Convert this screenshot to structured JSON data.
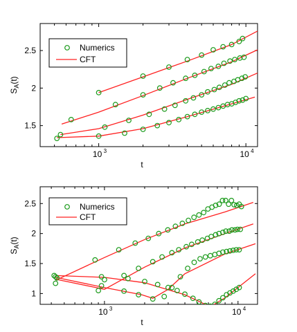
{
  "colors": {
    "numerics": "#1a9a1a",
    "cft": "#ff2020"
  },
  "chart_data": [
    {
      "type": "line",
      "xscale": "log",
      "xlim": [
        400,
        12000
      ],
      "ylim": [
        1.22,
        2.86
      ],
      "xticks": [
        {
          "value": 1000,
          "base": "10",
          "exp": "3"
        },
        {
          "value": 10000,
          "base": "10",
          "exp": "4"
        }
      ],
      "yticks": [
        {
          "value": 1.5,
          "label": "1.5"
        },
        {
          "value": 2,
          "label": "2"
        },
        {
          "value": 2.5,
          "label": "2.5"
        }
      ],
      "xlabel": "t",
      "ylabel": "S",
      "ylabel_sub": "A",
      "ylabel_suffix": "(t)",
      "legend": {
        "position": "top-left",
        "entries": [
          "Numerics",
          "CFT"
        ]
      },
      "series": [
        {
          "numerics": [
            [
              1000,
              1.94
            ],
            [
              2000,
              2.16
            ],
            [
              3000,
              2.28
            ],
            [
              4000,
              2.38
            ],
            [
              5000,
              2.44
            ],
            [
              6000,
              2.51
            ],
            [
              7000,
              2.55
            ],
            [
              8000,
              2.58
            ],
            [
              9000,
              2.62
            ],
            [
              9500,
              2.66
            ]
          ],
          "cft": [
            [
              1000,
              1.94
            ],
            [
              2000,
              2.15
            ],
            [
              4000,
              2.36
            ],
            [
              8000,
              2.58
            ],
            [
              12000,
              2.76
            ]
          ]
        },
        {
          "numerics": [
            [
              650,
              1.58
            ],
            [
              1300,
              1.78
            ],
            [
              2000,
              1.91
            ],
            [
              2600,
              2.0
            ],
            [
              3200,
              2.07
            ],
            [
              3900,
              2.13
            ],
            [
              4500,
              2.17
            ],
            [
              5200,
              2.22
            ],
            [
              5800,
              2.26
            ],
            [
              6500,
              2.29
            ],
            [
              7100,
              2.33
            ],
            [
              7800,
              2.36
            ],
            [
              8400,
              2.38
            ],
            [
              9100,
              2.4
            ],
            [
              9700,
              2.41
            ]
          ],
          "cft": [
            [
              560,
              1.52
            ],
            [
              1000,
              1.68
            ],
            [
              2000,
              1.9
            ],
            [
              4000,
              2.13
            ],
            [
              8000,
              2.35
            ],
            [
              12000,
              2.51
            ]
          ]
        },
        {
          "numerics": [
            [
              550,
              1.38
            ],
            [
              1100,
              1.48
            ],
            [
              1600,
              1.57
            ],
            [
              2200,
              1.65
            ],
            [
              2800,
              1.72
            ],
            [
              3300,
              1.77
            ],
            [
              3900,
              1.83
            ],
            [
              4400,
              1.87
            ],
            [
              5000,
              1.91
            ],
            [
              5500,
              1.95
            ],
            [
              6100,
              1.98
            ],
            [
              6600,
              2.01
            ],
            [
              7200,
              2.04
            ],
            [
              7700,
              2.07
            ],
            [
              8300,
              2.09
            ],
            [
              8800,
              2.11
            ],
            [
              9400,
              2.13
            ],
            [
              9900,
              2.15
            ]
          ],
          "cft": [
            [
              550,
              1.38
            ],
            [
              1000,
              1.46
            ],
            [
              2000,
              1.64
            ],
            [
              4000,
              1.85
            ],
            [
              8000,
              2.05
            ],
            [
              12000,
              2.2
            ]
          ]
        },
        {
          "numerics": [
            [
              520,
              1.33
            ],
            [
              1000,
              1.36
            ],
            [
              1500,
              1.4
            ],
            [
              2000,
              1.45
            ],
            [
              2500,
              1.5
            ],
            [
              3000,
              1.54
            ],
            [
              3500,
              1.58
            ],
            [
              4000,
              1.62
            ],
            [
              4500,
              1.65
            ],
            [
              5000,
              1.68
            ],
            [
              5500,
              1.7
            ],
            [
              6000,
              1.72
            ],
            [
              6500,
              1.74
            ],
            [
              7000,
              1.76
            ],
            [
              7500,
              1.78
            ],
            [
              8000,
              1.79
            ],
            [
              8500,
              1.81
            ],
            [
              9000,
              1.83
            ],
            [
              9500,
              1.84
            ],
            [
              10000,
              1.86
            ]
          ],
          "cft": [
            [
              520,
              1.34
            ],
            [
              1000,
              1.36
            ],
            [
              2000,
              1.46
            ],
            [
              4000,
              1.62
            ],
            [
              8000,
              1.79
            ],
            [
              11500,
              1.88
            ]
          ]
        }
      ]
    },
    {
      "type": "line",
      "xscale": "log",
      "xlim": [
        330,
        14000
      ],
      "ylim": [
        0.82,
        2.78
      ],
      "xticks": [
        {
          "value": 1000,
          "base": "10",
          "exp": "3"
        },
        {
          "value": 10000,
          "base": "10",
          "exp": "4"
        }
      ],
      "yticks": [
        {
          "value": 1,
          "label": "1"
        },
        {
          "value": 1.5,
          "label": "1.5"
        },
        {
          "value": 2,
          "label": "2"
        },
        {
          "value": 2.5,
          "label": "2.5"
        }
      ],
      "xlabel": "t",
      "ylabel": "S",
      "ylabel_sub": "A",
      "ylabel_suffix": "(t)",
      "legend": {
        "position": "top-left",
        "entries": [
          "Numerics",
          "CFT"
        ]
      },
      "series": [
        {
          "numerics": [
            [
              430,
              1.17
            ],
            [
              850,
              1.56
            ],
            [
              1280,
              1.73
            ],
            [
              1700,
              1.84
            ],
            [
              2130,
              1.92
            ],
            [
              2550,
              2.0
            ],
            [
              2980,
              2.06
            ],
            [
              3400,
              2.12
            ],
            [
              3830,
              2.17
            ],
            [
              4250,
              2.22
            ],
            [
              4680,
              2.27
            ],
            [
              5100,
              2.31
            ],
            [
              5530,
              2.35
            ],
            [
              5950,
              2.41
            ],
            [
              6380,
              2.44
            ],
            [
              6800,
              2.47
            ],
            [
              7230,
              2.49
            ],
            [
              7650,
              2.55
            ],
            [
              8080,
              2.55
            ],
            [
              8500,
              2.49
            ],
            [
              8930,
              2.55
            ],
            [
              9350,
              2.48
            ],
            [
              9780,
              2.47
            ],
            [
              10200,
              2.49
            ],
            [
              10600,
              2.45
            ]
          ],
          "cft": [
            [
              430,
              1.22
            ],
            [
              1000,
              1.6
            ],
            [
              2000,
              1.9
            ],
            [
              4000,
              2.16
            ],
            [
              8000,
              2.36
            ],
            [
              13000,
              2.52
            ]
          ]
        },
        {
          "numerics": [
            [
              430,
              1.28
            ],
            [
              900,
              1.05
            ],
            [
              950,
              1.13
            ],
            [
              1400,
              1.3
            ],
            [
              1800,
              1.42
            ],
            [
              2300,
              1.53
            ],
            [
              2700,
              1.61
            ],
            [
              3200,
              1.68
            ],
            [
              3600,
              1.73
            ],
            [
              4100,
              1.78
            ],
            [
              4500,
              1.82
            ],
            [
              5000,
              1.86
            ],
            [
              5400,
              1.89
            ],
            [
              5900,
              1.92
            ],
            [
              6300,
              1.95
            ],
            [
              6800,
              1.98
            ],
            [
              7200,
              2.0
            ],
            [
              7700,
              2.02
            ],
            [
              8100,
              2.04
            ],
            [
              8600,
              2.04
            ],
            [
              9000,
              2.06
            ],
            [
              9500,
              2.06
            ],
            [
              9900,
              2.07
            ],
            [
              10400,
              2.07
            ]
          ],
          "cft": [
            [
              430,
              1.24
            ],
            [
              1000,
              1.07
            ],
            [
              2000,
              1.44
            ],
            [
              4000,
              1.76
            ],
            [
              8000,
              2.0
            ],
            [
              13000,
              2.16
            ]
          ]
        },
        {
          "numerics": [
            [
              420,
              1.3
            ],
            [
              950,
              1.28
            ],
            [
              1500,
              1.25
            ],
            [
              2000,
              1.2
            ],
            [
              2500,
              1.15
            ],
            [
              3000,
              1.1
            ],
            [
              3500,
              1.05
            ],
            [
              4000,
              0.99
            ],
            [
              4600,
              0.92
            ],
            [
              5100,
              0.86
            ],
            [
              5700,
              0.8
            ],
            [
              6200,
              0.79
            ],
            [
              6700,
              0.82
            ],
            [
              7200,
              0.88
            ],
            [
              7700,
              0.93
            ],
            [
              8200,
              0.98
            ],
            [
              8700,
              1.01
            ],
            [
              9200,
              1.04
            ],
            [
              9700,
              1.07
            ],
            [
              10200,
              1.1
            ]
          ],
          "cft": [
            [
              430,
              1.3
            ],
            [
              1000,
              1.27
            ],
            [
              2000,
              1.18
            ],
            [
              4000,
              0.98
            ],
            [
              6200,
              0.78
            ],
            [
              8000,
              0.93
            ],
            [
              13500,
              1.33
            ]
          ]
        },
        {
          "numerics": [
            [
              440,
              1.26
            ],
            [
              1000,
              1.23
            ],
            [
              1400,
              1.04
            ],
            [
              1800,
              0.98
            ],
            [
              2300,
              0.91
            ],
            [
              2800,
              0.95
            ],
            [
              3200,
              1.1
            ],
            [
              3700,
              1.28
            ],
            [
              4200,
              1.42
            ],
            [
              4700,
              1.52
            ],
            [
              5200,
              1.58
            ],
            [
              5700,
              1.61
            ],
            [
              6200,
              1.63
            ],
            [
              6700,
              1.65
            ],
            [
              7200,
              1.67
            ],
            [
              7700,
              1.69
            ],
            [
              8200,
              1.7
            ],
            [
              8700,
              1.71
            ],
            [
              9200,
              1.72
            ],
            [
              9700,
              1.73
            ],
            [
              10200,
              1.73
            ]
          ],
          "cft": [
            [
              430,
              1.27
            ],
            [
              1000,
              1.1
            ],
            [
              1900,
              0.98
            ],
            [
              2300,
              0.92
            ],
            [
              3000,
              1.07
            ],
            [
              4000,
              1.33
            ],
            [
              8000,
              1.66
            ],
            [
              13500,
              1.83
            ]
          ]
        }
      ]
    }
  ]
}
